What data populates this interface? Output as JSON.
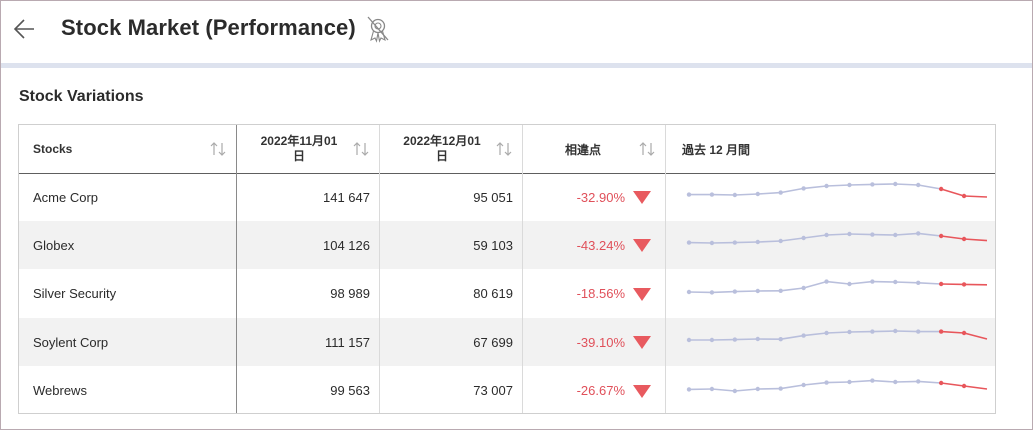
{
  "header": {
    "title": "Stock Market (Performance)",
    "back_icon": "arrow-left-icon",
    "badge_icon": "award-off-icon"
  },
  "section": {
    "title": "Stock Variations"
  },
  "table": {
    "columns": [
      {
        "label": "Stocks"
      },
      {
        "label_line1": "2022年11月01",
        "label_line2": "日"
      },
      {
        "label_line1": "2022年12月01",
        "label_line2": "日"
      },
      {
        "label": "相違点"
      },
      {
        "label": "過去 12 月間"
      }
    ],
    "rows": [
      {
        "name": "Acme Corp",
        "nov": "141 647",
        "dec": "95 051",
        "diff": "-32.90%",
        "trend": [
          0.42,
          0.42,
          0.4,
          0.45,
          0.52,
          0.73,
          0.85,
          0.9,
          0.93,
          0.95,
          0.9,
          0.7,
          0.35,
          0.3
        ],
        "trend_highlight_start": 11
      },
      {
        "name": "Globex",
        "nov": "104 126",
        "dec": "59 103",
        "diff": "-43.24%",
        "trend": [
          0.42,
          0.4,
          0.42,
          0.45,
          0.5,
          0.65,
          0.8,
          0.85,
          0.82,
          0.8,
          0.88,
          0.75,
          0.6,
          0.52
        ],
        "trend_highlight_start": 11
      },
      {
        "name": "Silver Security",
        "nov": "98 989",
        "dec": "80 619",
        "diff": "-18.56%",
        "trend": [
          0.4,
          0.38,
          0.42,
          0.45,
          0.46,
          0.6,
          0.92,
          0.8,
          0.92,
          0.9,
          0.86,
          0.8,
          0.78,
          0.76
        ],
        "trend_highlight_start": 11
      },
      {
        "name": "Soylent Corp",
        "nov": "111 157",
        "dec": "67 699",
        "diff": "-39.10%",
        "trend": [
          0.4,
          0.4,
          0.42,
          0.45,
          0.44,
          0.62,
          0.75,
          0.8,
          0.82,
          0.85,
          0.82,
          0.82,
          0.75,
          0.45
        ],
        "trend_highlight_start": 11
      },
      {
        "name": "Webrews",
        "nov": "99 563",
        "dec": "73 007",
        "diff": "-26.67%",
        "trend": [
          0.38,
          0.4,
          0.3,
          0.4,
          0.42,
          0.6,
          0.72,
          0.75,
          0.82,
          0.75,
          0.78,
          0.7,
          0.55,
          0.4
        ],
        "trend_highlight_start": 11
      }
    ]
  },
  "colors": {
    "sparkline_base": "#b9bfdc",
    "sparkline_highlight": "#e8565b",
    "negative": "#e0505a"
  }
}
